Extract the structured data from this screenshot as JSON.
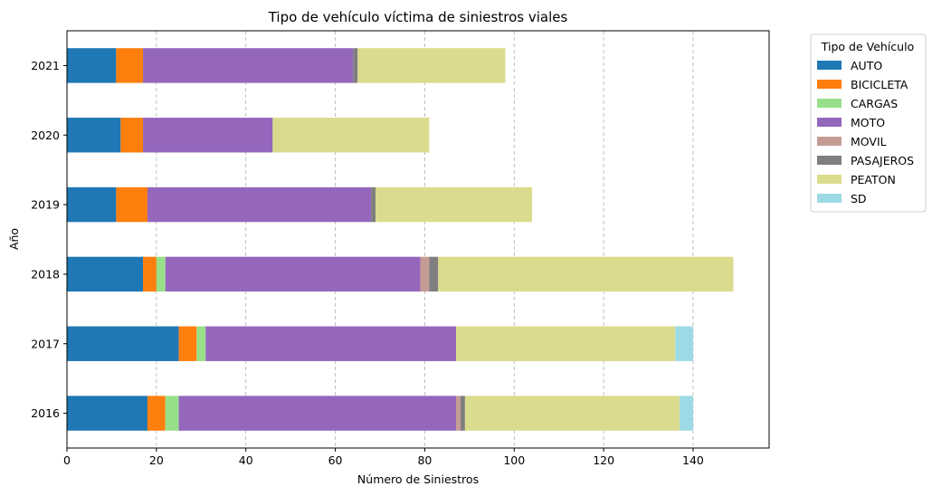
{
  "chart_data": {
    "type": "bar",
    "orientation": "horizontal",
    "stacked": true,
    "title": "Tipo de vehículo víctima de siniestros viales",
    "xlabel": "Número de Siniestros",
    "ylabel": "Año",
    "categories": [
      "2016",
      "2017",
      "2018",
      "2019",
      "2020",
      "2021"
    ],
    "xlim": [
      0,
      157
    ],
    "xticks": [
      0,
      20,
      40,
      60,
      80,
      100,
      120,
      140
    ],
    "grid": "x-dashed",
    "legend": {
      "title": "Tipo de Vehículo",
      "placement": "outside-top-right"
    },
    "series": [
      {
        "name": "AUTO",
        "color": "#1f77b4",
        "values": [
          18,
          25,
          17,
          11,
          12,
          11
        ]
      },
      {
        "name": "BICICLETA",
        "color": "#ff7f0e",
        "values": [
          4,
          4,
          3,
          7,
          5,
          6
        ]
      },
      {
        "name": "CARGAS",
        "color": "#98df8a",
        "values": [
          3,
          2,
          2,
          0,
          0,
          0
        ]
      },
      {
        "name": "MOTO",
        "color": "#9467bd",
        "values": [
          62,
          56,
          57,
          50,
          29,
          47
        ]
      },
      {
        "name": "MOVIL",
        "color": "#c49c94",
        "values": [
          1,
          0,
          2,
          0,
          0,
          0
        ]
      },
      {
        "name": "PASAJEROS",
        "color": "#7f7f7f",
        "values": [
          1,
          0,
          2,
          1,
          0,
          1
        ]
      },
      {
        "name": "PEATON",
        "color": "#dbdb8d",
        "values": [
          48,
          49,
          66,
          35,
          35,
          33
        ]
      },
      {
        "name": "SD",
        "color": "#9edae5",
        "values": [
          3,
          4,
          0,
          0,
          0,
          0
        ]
      }
    ]
  }
}
